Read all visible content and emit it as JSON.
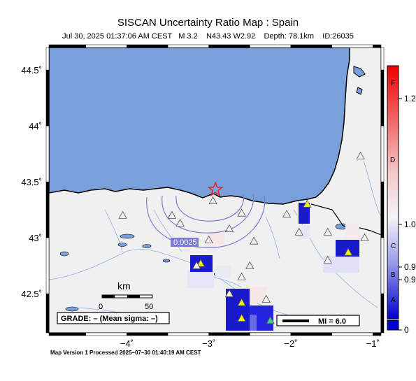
{
  "map": {
    "title": "SISCAN Uncertainty Ratio Map : Spain",
    "subtitle": "Jul 30, 2025 01:37:06 AM CEST   M 3.2    N43.43 W2.92    Depth: 78.1km    ID:26035",
    "footer": "Map Version 1 Processed 2025–07–30 01:40:19 AM CEST",
    "lon_range": [
      -4.95,
      -0.9
    ],
    "lat_range": [
      42.15,
      44.7
    ],
    "lon_ticks": [
      {
        "value": -4,
        "label": "−4˚"
      },
      {
        "value": -3,
        "label": "−3˚"
      },
      {
        "value": -2,
        "label": "−2˚"
      },
      {
        "value": -1,
        "label": "−1˚"
      }
    ],
    "lat_ticks": [
      {
        "value": 42.5,
        "label": "42.5˚"
      },
      {
        "value": 43,
        "label": "43˚"
      },
      {
        "value": 43.5,
        "label": "43.5˚"
      },
      {
        "value": 44,
        "label": "44˚"
      },
      {
        "value": 44.5,
        "label": "44.5˚"
      }
    ],
    "epicenter": {
      "lon": -2.92,
      "lat": 43.43
    },
    "contour_label": "0.0025",
    "scale_bar": {
      "unit": "km",
      "ticks": [
        "0",
        "50"
      ]
    },
    "grade_text": "GRADE: – (Mean sigma: –)",
    "mi_legend": "MI = 6.0",
    "colors": {
      "sea": "#7aa0dc",
      "land": "#f0f0f0",
      "epicenter": "#e8202a",
      "contour": "#7b7bd6",
      "station": "#f4f40a"
    }
  },
  "colorbar": {
    "grades": [
      "F",
      "D",
      "C",
      "B",
      "A"
    ],
    "values": [
      "1.2",
      "1.0",
      "0.9",
      "0.9",
      "0"
    ]
  },
  "stations": [
    {
      "lon": -1.8,
      "lat": 43.3,
      "color": "#f4f40a"
    },
    {
      "lon": -3.1,
      "lat": 42.77,
      "color": "#f4f40a"
    },
    {
      "lon": -1.3,
      "lat": 42.87,
      "color": "#f4f40a"
    },
    {
      "lon": -2.6,
      "lat": 42.42,
      "color": "#f4f40a"
    },
    {
      "lon": -2.6,
      "lat": 42.28,
      "color": "#f4f40a"
    },
    {
      "lon": -2.25,
      "lat": 42.26,
      "color": "#3ccf8e"
    },
    {
      "lon": -4.05,
      "lat": 43.2,
      "color": "#f0f0f0"
    },
    {
      "lon": -2.95,
      "lat": 43.33,
      "color": "#f0f0f0"
    },
    {
      "lon": -3.45,
      "lat": 43.2,
      "color": "#f0f0f0"
    },
    {
      "lon": -3.35,
      "lat": 43.13,
      "color": "#f0f0f0"
    },
    {
      "lon": -3.0,
      "lat": 42.98,
      "color": "#f0f0f0"
    },
    {
      "lon": -2.75,
      "lat": 43.08,
      "color": "#f0f0f0"
    },
    {
      "lon": -2.6,
      "lat": 43.22,
      "color": "#f0f0f0"
    },
    {
      "lon": -2.45,
      "lat": 42.97,
      "color": "#f0f0f0"
    },
    {
      "lon": -2.5,
      "lat": 42.75,
      "color": "#f0f0f0"
    },
    {
      "lon": -2.75,
      "lat": 42.5,
      "color": "#f0f0f0"
    },
    {
      "lon": -2.6,
      "lat": 42.65,
      "color": "#f0f0f0"
    },
    {
      "lon": -2.05,
      "lat": 43.21,
      "color": "#f0f0f0"
    },
    {
      "lon": -1.9,
      "lat": 43.05,
      "color": "#f0f0f0"
    },
    {
      "lon": -1.55,
      "lat": 43.05,
      "color": "#f0f0f0"
    },
    {
      "lon": -1.15,
      "lat": 43.73,
      "color": "#f0f0f0"
    },
    {
      "lon": -1.1,
      "lat": 43.0,
      "color": "#f0f0f0"
    },
    {
      "lon": -1.55,
      "lat": 42.8,
      "color": "#f0f0f0"
    },
    {
      "lon": -3.15,
      "lat": 42.75,
      "color": "#f0f0f0"
    },
    {
      "lon": -2.3,
      "lat": 42.45,
      "color": "#f0f0f0"
    }
  ]
}
